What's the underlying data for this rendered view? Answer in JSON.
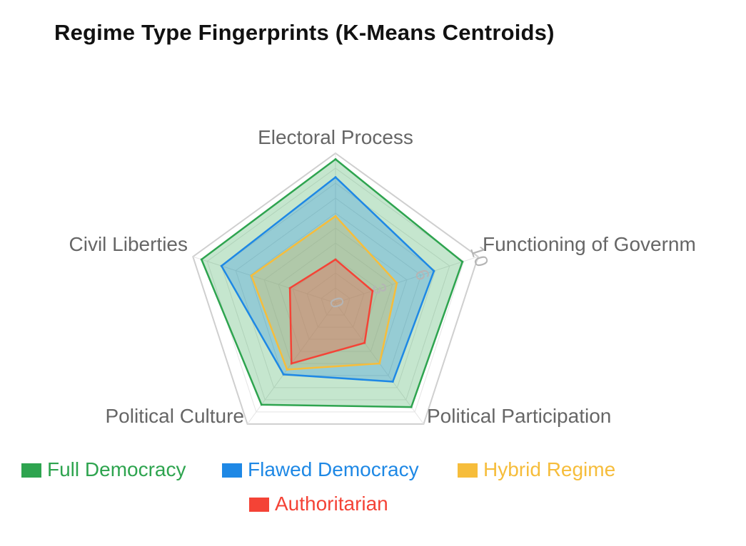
{
  "title": "Regime Type Fingerprints (K-Means Centroids)",
  "chart_data": {
    "type": "radar",
    "title": "Regime Type Fingerprints (K-Means Centroids)",
    "axes": [
      "Electoral Process",
      "Functioning of Government",
      "Political Participation",
      "Political Culture",
      "Civil Liberties"
    ],
    "axis_labels_displayed": [
      "Electoral Process",
      "Functioning of Governm",
      "Political Participation",
      "Political Culture",
      "Civil Liberties"
    ],
    "r_range": [
      0,
      10
    ],
    "ticks": [
      0,
      3,
      6,
      10
    ],
    "grid": true,
    "legend_position": "bottom",
    "series": [
      {
        "name": "Full Democracy",
        "color": "#2ea44f",
        "fill": "rgba(46,164,79,0.28)",
        "values": [
          9.6,
          8.9,
          8.6,
          8.4,
          9.4
        ]
      },
      {
        "name": "Flawed Democracy",
        "color": "#1e88e5",
        "fill": "rgba(30,136,229,0.28)",
        "values": [
          8.4,
          6.9,
          6.5,
          5.9,
          8.0
        ]
      },
      {
        "name": "Hybrid Regime",
        "color": "#f6bd3b",
        "fill": "rgba(246,189,59,0.28)",
        "values": [
          5.8,
          4.3,
          5.0,
          5.5,
          5.9
        ]
      },
      {
        "name": "Authoritarian",
        "color": "#f44336",
        "fill": "rgba(244,67,54,0.28)",
        "values": [
          2.9,
          2.6,
          3.3,
          5.0,
          3.2
        ]
      }
    ]
  }
}
